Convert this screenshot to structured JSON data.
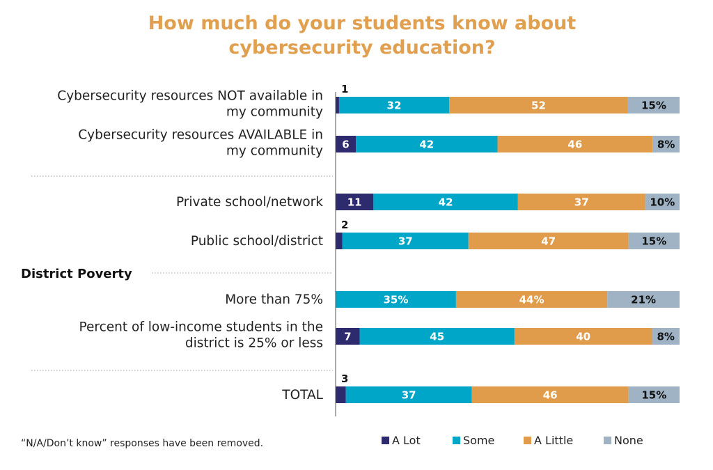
{
  "chart_data": {
    "type": "bar",
    "orientation": "horizontal",
    "stacked": true,
    "title_lines": [
      "How much do your students know about",
      "cybersecurity education?"
    ],
    "colors": {
      "A Lot": "#2E2A6E",
      "Some": "#00A6C7",
      "A Little": "#E09C4A",
      "None": "#9FB3C4",
      "title": "#E0A050"
    },
    "section_label": "District Poverty",
    "series_names": [
      "A Lot",
      "Some",
      "A Little",
      "None"
    ],
    "rows": [
      {
        "label_lines": [
          "Cybersecurity resources NOT available in",
          "my community"
        ],
        "values": [
          1,
          32,
          52,
          15
        ],
        "labels": [
          "1",
          "32",
          "52",
          "15%"
        ]
      },
      {
        "label_lines": [
          "Cybersecurity resources AVAILABLE in",
          "my community"
        ],
        "values": [
          6,
          42,
          46,
          8
        ],
        "labels": [
          "6",
          "42",
          "46",
          "8%"
        ]
      },
      {
        "label_lines": [
          "Private school/network"
        ],
        "values": [
          11,
          42,
          37,
          10
        ],
        "labels": [
          "11",
          "42",
          "37",
          "10%"
        ]
      },
      {
        "label_lines": [
          "Public school/district"
        ],
        "values": [
          2,
          37,
          47,
          15
        ],
        "labels": [
          "2",
          "37",
          "47",
          "15%"
        ]
      },
      {
        "label_lines": [
          "More than 75%"
        ],
        "values": [
          0,
          35,
          44,
          21
        ],
        "labels": [
          "",
          "35%",
          "44%",
          "21%"
        ]
      },
      {
        "label_lines": [
          "Percent of low-income students in the",
          "district is 25% or less"
        ],
        "values": [
          7,
          45,
          40,
          8
        ],
        "labels": [
          "7",
          "45",
          "40",
          "8%"
        ]
      },
      {
        "label_lines": [
          "TOTAL"
        ],
        "values": [
          3,
          37,
          46,
          15
        ],
        "labels": [
          "3",
          "37",
          "46",
          "15%"
        ]
      }
    ],
    "legend": [
      "A Lot",
      "Some",
      "A Little",
      "None"
    ],
    "legend_position": "bottom-right",
    "note": "“N/A/Don’t know” responses have been removed."
  }
}
